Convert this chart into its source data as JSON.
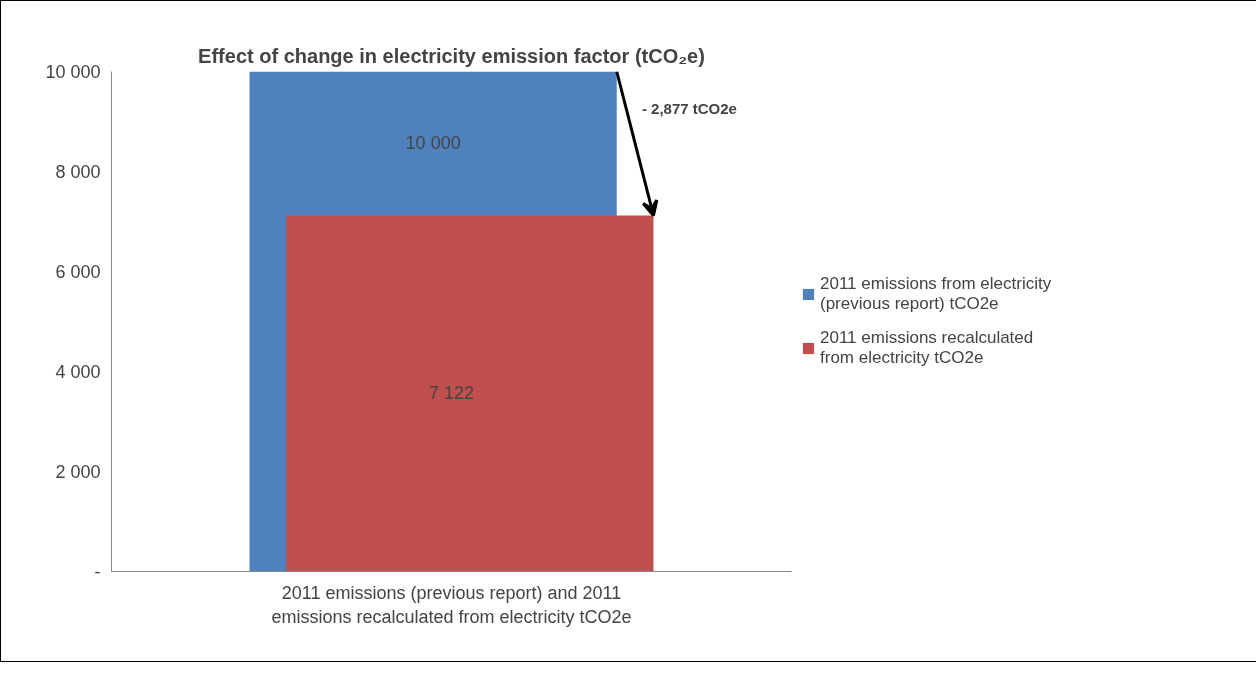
{
  "chart_data": {
    "type": "bar",
    "title": "Effect of change in electricity emission factor (tCO₂e)",
    "categories": [
      "2011 emissions (previous report) and 2011 emissions recalculated from electricity tCO2e"
    ],
    "series": [
      {
        "name": "2011 emissions from electricity (previous report) tCO2e",
        "color": "#4f81bd",
        "values": [
          10000
        ],
        "value_labels": [
          "10 000"
        ]
      },
      {
        "name": "2011 emissions recalculated from electricity tCO2e",
        "color": "#c0504d",
        "values": [
          7122
        ],
        "value_labels": [
          "7 122"
        ]
      }
    ],
    "ylim": [
      0,
      10000
    ],
    "yticks": [
      {
        "value": 0,
        "label": "-"
      },
      {
        "value": 2000,
        "label": "2 000"
      },
      {
        "value": 4000,
        "label": "4 000"
      },
      {
        "value": 6000,
        "label": "6 000"
      },
      {
        "value": 8000,
        "label": "8 000"
      },
      {
        "value": 10000,
        "label": "10 000"
      }
    ],
    "annotations": [
      "- 2,877 tCO2e"
    ],
    "grid": false,
    "legend": "right"
  }
}
